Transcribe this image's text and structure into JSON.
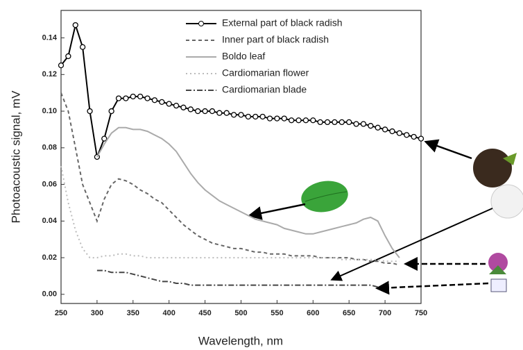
{
  "chart_data": {
    "type": "line",
    "xlabel": "Wavelength, nm",
    "ylabel": "Photoacoustic signal, mV",
    "xlim": [
      250,
      750
    ],
    "ylim": [
      -0.005,
      0.155
    ],
    "xticks": [
      250,
      300,
      350,
      400,
      450,
      500,
      550,
      600,
      650,
      700,
      750
    ],
    "yticks": [
      {
        "value": 0,
        "label": "0.00"
      },
      0.02,
      0.04,
      0.06,
      0.08,
      {
        "value": 0.1,
        "label": "0.10"
      },
      0.12,
      0.14
    ],
    "x": [
      250,
      260,
      270,
      280,
      290,
      300,
      310,
      320,
      330,
      340,
      350,
      360,
      370,
      380,
      390,
      400,
      410,
      420,
      430,
      440,
      450,
      460,
      470,
      480,
      490,
      500,
      510,
      520,
      530,
      540,
      550,
      560,
      570,
      580,
      590,
      600,
      610,
      620,
      630,
      640,
      650,
      660,
      670,
      680,
      690,
      700,
      710,
      720,
      730,
      740,
      750
    ],
    "series": [
      {
        "name": "External part of black radish",
        "color": "#000000",
        "dash": "solid",
        "marker": "circle",
        "values": [
          0.125,
          0.13,
          0.147,
          0.135,
          0.1,
          0.075,
          0.085,
          0.1,
          0.107,
          0.107,
          0.108,
          0.108,
          0.107,
          0.106,
          0.105,
          0.104,
          0.103,
          0.102,
          0.101,
          0.1,
          0.1,
          0.1,
          0.099,
          0.099,
          0.098,
          0.098,
          0.097,
          0.097,
          0.097,
          0.096,
          0.096,
          0.096,
          0.095,
          0.095,
          0.095,
          0.095,
          0.094,
          0.094,
          0.094,
          0.094,
          0.094,
          0.093,
          0.093,
          0.092,
          0.091,
          0.09,
          0.089,
          0.088,
          0.087,
          0.086,
          0.085
        ]
      },
      {
        "name": "Inner part of black radish",
        "color": "#666666",
        "dash": "dashed",
        "marker": "none",
        "values": [
          0.11,
          0.1,
          0.08,
          0.06,
          0.05,
          0.04,
          0.052,
          0.06,
          0.063,
          0.062,
          0.06,
          0.057,
          0.055,
          0.052,
          0.05,
          0.046,
          0.042,
          0.038,
          0.035,
          0.032,
          0.03,
          0.028,
          0.027,
          0.026,
          0.025,
          0.025,
          0.024,
          0.023,
          0.023,
          0.022,
          0.022,
          0.022,
          0.021,
          0.021,
          0.021,
          0.021,
          0.02,
          0.02,
          0.02,
          0.02,
          0.02,
          0.019,
          0.019,
          0.018,
          0.018,
          0.017,
          0.017,
          0.016,
          null,
          null,
          null
        ]
      },
      {
        "name": "Boldo leaf",
        "color": "#aaaaaa",
        "dash": "solid",
        "marker": "none",
        "values": [
          null,
          null,
          null,
          null,
          null,
          0.075,
          0.082,
          0.088,
          0.091,
          0.091,
          0.09,
          0.09,
          0.089,
          0.087,
          0.085,
          0.082,
          0.078,
          0.072,
          0.066,
          0.061,
          0.057,
          0.054,
          0.051,
          0.049,
          0.047,
          0.045,
          0.043,
          0.041,
          0.04,
          0.039,
          0.038,
          0.036,
          0.035,
          0.034,
          0.033,
          0.033,
          0.034,
          0.035,
          0.036,
          0.037,
          0.038,
          0.039,
          0.041,
          0.042,
          0.04,
          0.032,
          0.025,
          0.02,
          null,
          null,
          null
        ]
      },
      {
        "name": "Cardiomarian flower",
        "color": "#bbbbbb",
        "dash": "dotted",
        "marker": "none",
        "values": [
          0.07,
          0.05,
          0.035,
          0.025,
          0.02,
          0.02,
          0.021,
          0.021,
          0.022,
          0.022,
          0.021,
          0.021,
          0.02,
          0.02,
          0.02,
          0.02,
          0.02,
          0.02,
          0.02,
          0.02,
          0.02,
          0.02,
          0.02,
          0.02,
          0.02,
          0.02,
          0.02,
          0.02,
          0.02,
          0.02,
          0.02,
          0.02,
          0.02,
          0.02,
          0.02,
          0.02,
          0.02,
          0.02,
          0.02,
          0.019,
          0.019,
          0.019,
          0.019,
          0.019,
          0.019,
          0.018,
          0.018,
          0.018,
          null,
          null,
          null
        ]
      },
      {
        "name": "Cardiomarian blade",
        "color": "#444444",
        "dash": "dashdot",
        "marker": "none",
        "values": [
          null,
          null,
          null,
          null,
          null,
          0.013,
          0.013,
          0.012,
          0.012,
          0.012,
          0.011,
          0.01,
          0.009,
          0.008,
          0.007,
          0.007,
          0.006,
          0.006,
          0.005,
          0.005,
          0.005,
          0.005,
          0.005,
          0.005,
          0.005,
          0.005,
          0.005,
          0.005,
          0.005,
          0.005,
          0.005,
          0.005,
          0.005,
          0.005,
          0.005,
          0.005,
          0.005,
          0.005,
          0.005,
          0.005,
          0.005,
          0.005,
          0.005,
          0.005,
          0.004,
          null,
          null,
          null,
          null,
          null,
          null
        ]
      }
    ]
  }
}
